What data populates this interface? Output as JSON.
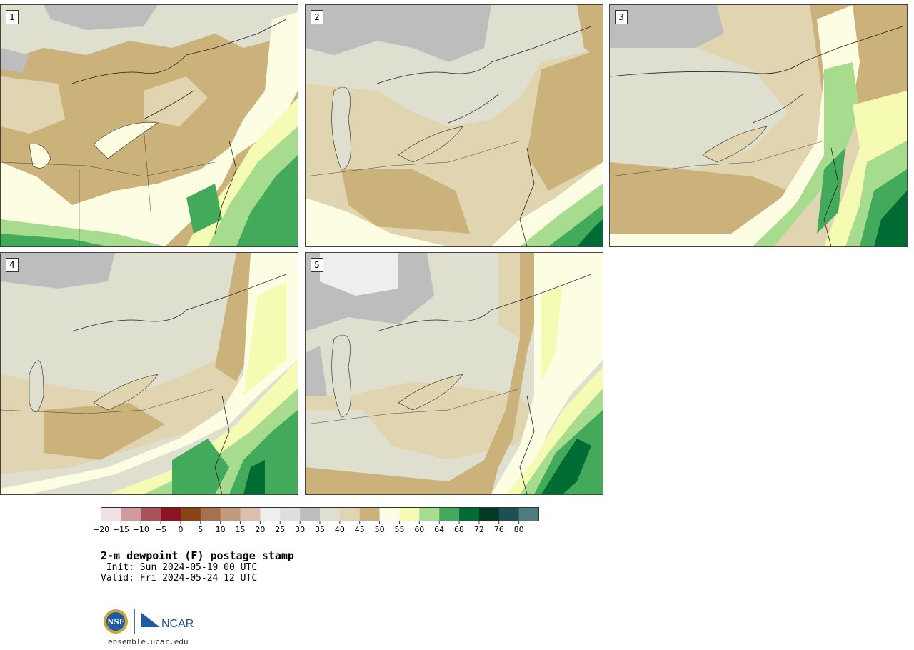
{
  "panels": [
    {
      "id": "1",
      "label": "1"
    },
    {
      "id": "2",
      "label": "2"
    },
    {
      "id": "3",
      "label": "3"
    },
    {
      "id": "4",
      "label": "4"
    },
    {
      "id": "5",
      "label": "5"
    }
  ],
  "colorbar": {
    "colors": [
      "#f0e2e2",
      "#cf9a9e",
      "#a9525a",
      "#8a1420",
      "#894314",
      "#a8714e",
      "#c49a7e",
      "#dcbfae",
      "#eeeeee",
      "#dedede",
      "#bdbdbd",
      "#dfdfd0",
      "#e0d5b0",
      "#cbb27b",
      "#fdfde4",
      "#f5fbb3",
      "#a7dc8e",
      "#43aa5c",
      "#006b32",
      "#003a22",
      "#1c5055",
      "#4f7b7e"
    ],
    "tick_labels": [
      "−20",
      "−15",
      "−10",
      "−5",
      "0",
      "5",
      "10",
      "15",
      "20",
      "25",
      "30",
      "35",
      "40",
      "45",
      "50",
      "55",
      "60",
      "64",
      "68",
      "72",
      "76",
      "80"
    ]
  },
  "title": "2-m dewpoint (F) postage stamp",
  "init": " Init: Sun 2024-05-19 00 UTC",
  "valid": "Valid: Fri 2024-05-24 12 UTC",
  "logo": {
    "nsf_text": "NSF",
    "ncar_text": "NCAR"
  },
  "site": "ensemble.ucar.edu"
}
